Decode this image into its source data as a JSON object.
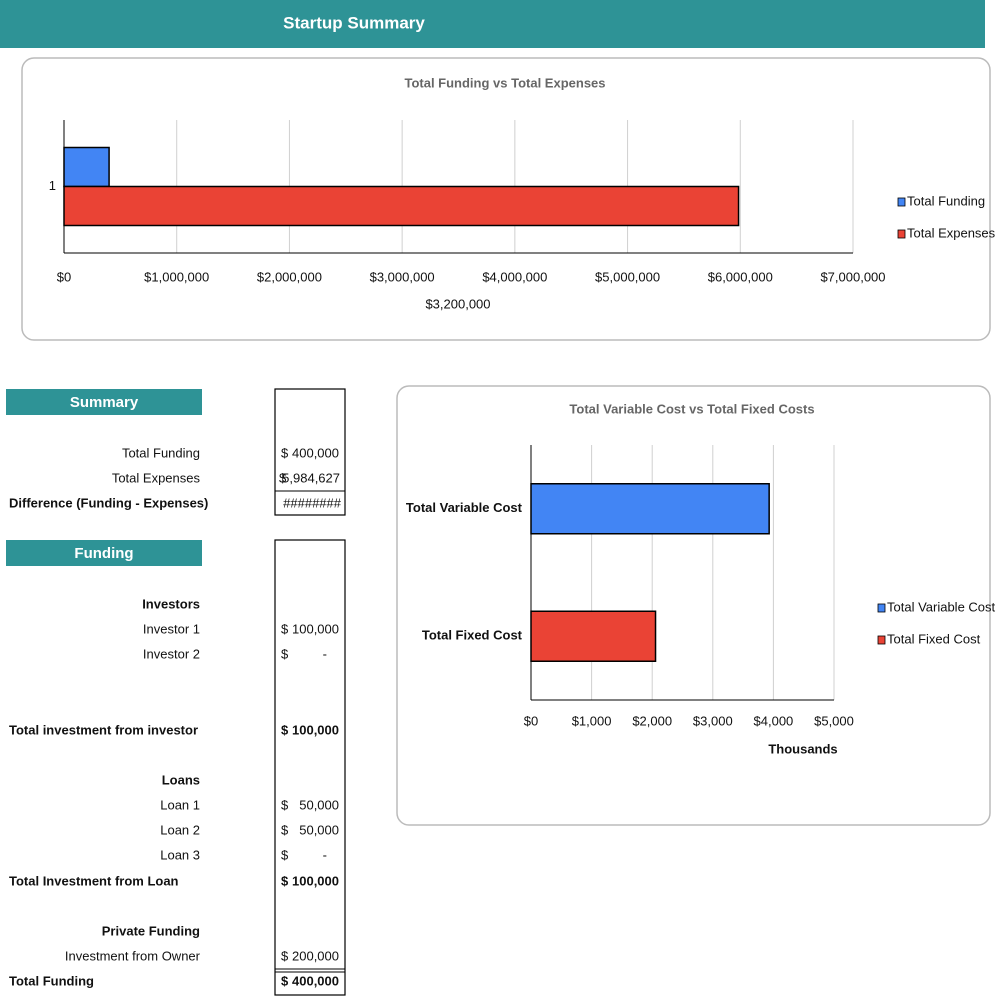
{
  "header": {
    "title": "Startup Summary"
  },
  "chart_data": [
    {
      "type": "bar",
      "orientation": "horizontal",
      "title": "Total Funding vs Total Expenses",
      "categories": [
        "1"
      ],
      "series": [
        {
          "name": "Total Funding",
          "color": "#4285f4",
          "values": [
            400000
          ]
        },
        {
          "name": "Total Expenses",
          "color": "#ea4335",
          "values": [
            5984627
          ]
        }
      ],
      "xlim": [
        0,
        7000000
      ],
      "xticks": [
        {
          "value": 0,
          "label": "$0"
        },
        {
          "value": 1000000,
          "label": "$1,000,000"
        },
        {
          "value": 2000000,
          "label": "$2,000,000"
        },
        {
          "value": 3000000,
          "label": "$3,000,000"
        },
        {
          "value": 4000000,
          "label": "$4,000,000"
        },
        {
          "value": 5000000,
          "label": "$5,000,000"
        },
        {
          "value": 6000000,
          "label": "$6,000,000"
        },
        {
          "value": 7000000,
          "label": "$7,000,000"
        }
      ],
      "annotation": "$3,200,000",
      "grid": true,
      "legend": "right"
    },
    {
      "type": "bar",
      "orientation": "horizontal",
      "title": "Total Variable Cost vs Total Fixed Costs",
      "categories": [
        "Total Variable Cost",
        "Total Fixed Cost"
      ],
      "values": [
        3930,
        2055
      ],
      "colors": [
        "#4285f4",
        "#ea4335"
      ],
      "xlim": [
        0,
        5000
      ],
      "xticks": [
        {
          "value": 0,
          "label": "$0"
        },
        {
          "value": 1000,
          "label": "$1,000"
        },
        {
          "value": 2000,
          "label": "$2,000"
        },
        {
          "value": 3000,
          "label": "$3,000"
        },
        {
          "value": 4000,
          "label": "$4,000"
        },
        {
          "value": 5000,
          "label": "$5,000"
        }
      ],
      "x_label": "Thousands",
      "grid": true,
      "legend": "right"
    }
  ],
  "summary": {
    "title": "Summary",
    "rows": [
      {
        "label": "Total Funding",
        "currency": "$",
        "amount": "400,000"
      },
      {
        "label": "Total Expenses",
        "currency": "$",
        "amount": "5,984,627"
      },
      {
        "label": "Difference (Funding - Expenses)",
        "amount": "########"
      }
    ]
  },
  "funding": {
    "title": "Funding",
    "rows": [
      {
        "label": "Investors"
      },
      {
        "label": "Investor 1",
        "currency": "$",
        "amount": "100,000"
      },
      {
        "label": "Investor 2",
        "currency": "$",
        "amount": "-"
      },
      {
        "label": "Total investment from investor",
        "currency": "$",
        "amount": "100,000"
      },
      {
        "label": "Loans"
      },
      {
        "label": "Loan 1",
        "currency": "$",
        "amount": "50,000"
      },
      {
        "label": "Loan 2",
        "currency": "$",
        "amount": "50,000"
      },
      {
        "label": "Loan 3",
        "currency": "$",
        "amount": "-"
      },
      {
        "label": "Total Investment from Loan",
        "currency": "$",
        "amount": "100,000"
      },
      {
        "label": "Private Funding"
      },
      {
        "label": "Investment from Owner",
        "currency": "$",
        "amount": "200,000"
      },
      {
        "label": "Total Funding",
        "currency": "$",
        "amount": "400,000"
      }
    ]
  }
}
